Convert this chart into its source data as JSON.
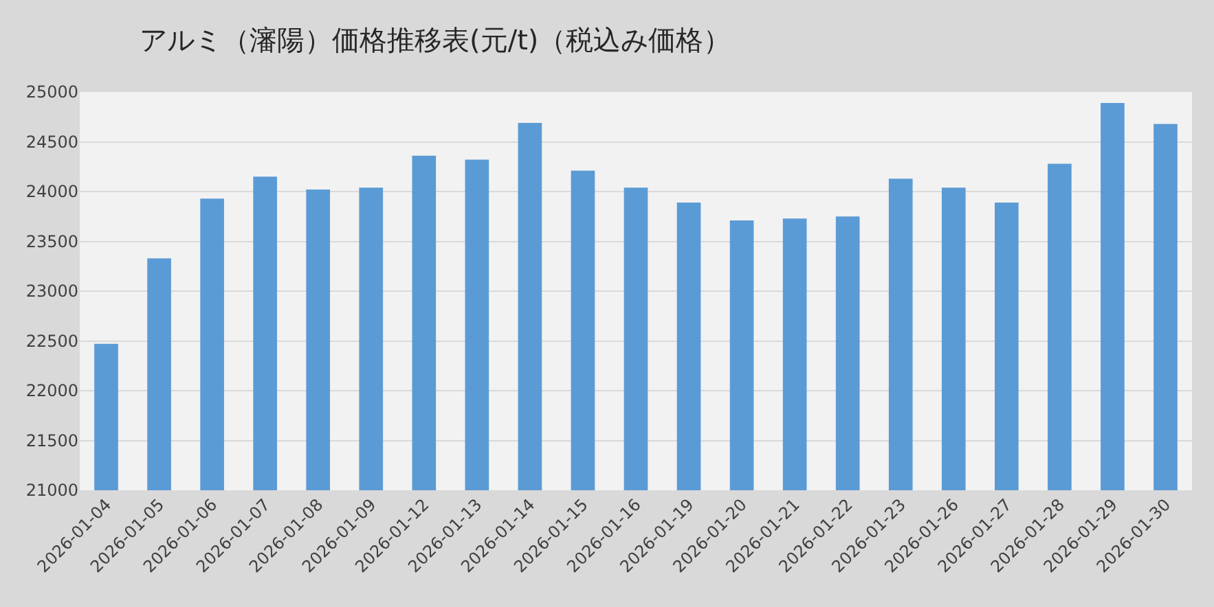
{
  "chart_data": {
    "type": "bar",
    "title": "アルミ（瀋陽）価格推移表(元/t)（税込み価格）",
    "categories": [
      "2026-01-04",
      "2026-01-05",
      "2026-01-06",
      "2026-01-07",
      "2026-01-08",
      "2026-01-09",
      "2026-01-12",
      "2026-01-13",
      "2026-01-14",
      "2026-01-15",
      "2026-01-16",
      "2026-01-19",
      "2026-01-20",
      "2026-01-21",
      "2026-01-22",
      "2026-01-23",
      "2026-01-26",
      "2026-01-27",
      "2026-01-28",
      "2026-01-29",
      "2026-01-30"
    ],
    "values": [
      22470,
      23330,
      23930,
      24150,
      24020,
      24040,
      24360,
      24320,
      24690,
      24210,
      24040,
      23890,
      23710,
      23730,
      23750,
      24130,
      24040,
      23890,
      24280,
      24890,
      24680
    ],
    "color": "#5b9bd5",
    "ylim": [
      21000,
      25000
    ],
    "yticks": [
      21000,
      21500,
      22000,
      22500,
      23000,
      23500,
      24000,
      24500,
      25000
    ],
    "grid": "y"
  }
}
